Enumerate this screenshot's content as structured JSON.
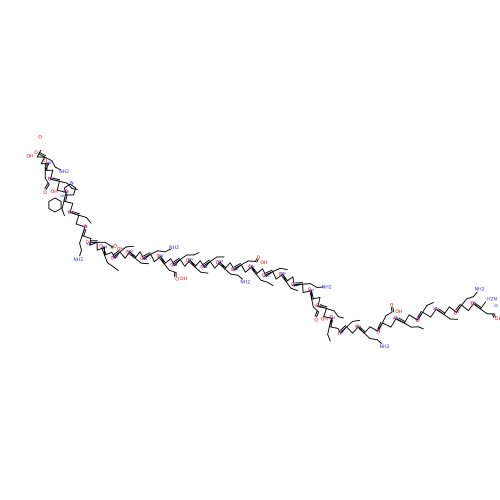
{
  "diagram": {
    "type": "skeletal-structure",
    "subject": "peptide",
    "colors": {
      "bond": "#000000",
      "oxygen": "#e00000",
      "nitrogen": "#2a2ad0",
      "background": "#ffffff"
    }
  },
  "atom_labels": {
    "oxygen": "O",
    "nitrogen": "N",
    "amide_nh": "HN",
    "hydroxyl": "OH",
    "amine": "H2N",
    "amine_h": "H",
    "nh2": "NH2",
    "nh": "NH"
  }
}
